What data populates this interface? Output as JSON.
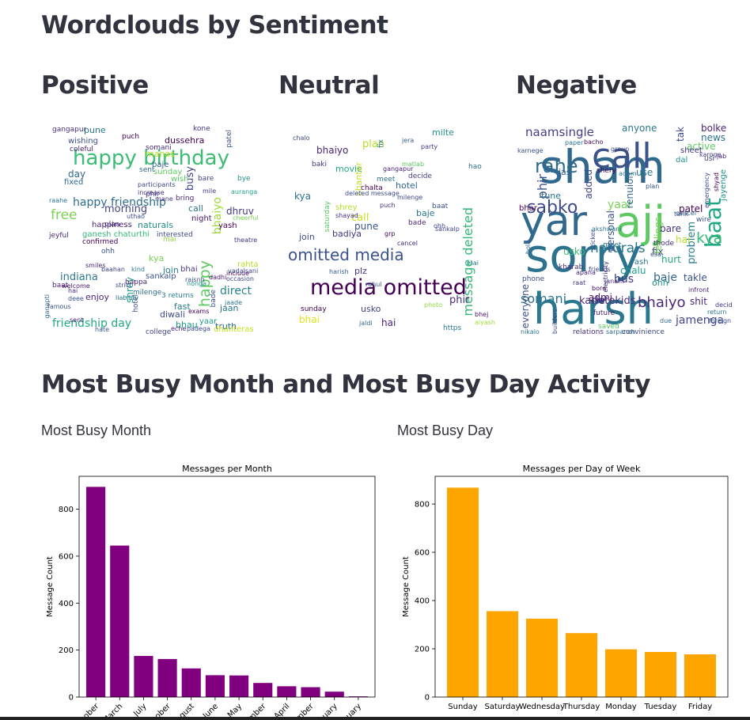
{
  "headings": {
    "wordclouds": "Wordclouds by Sentiment",
    "positive": "Positive",
    "neutral": "Neutral",
    "negative": "Negative",
    "busy": "Most Busy Month and Most Busy Day Activity",
    "busy_month": "Most Busy Month",
    "busy_day": "Most Busy Day"
  },
  "wordclouds": {
    "positive": {
      "words": [
        {
          "t": "happy birthday",
          "c": "#3dbc74"
        },
        {
          "t": "happy friendship",
          "c": "#2f6c8e"
        },
        {
          "t": "friendship day",
          "c": "#22a884"
        },
        {
          "t": "morning",
          "c": "#414487"
        },
        {
          "t": "indiana",
          "c": "#2a788e"
        },
        {
          "t": "free",
          "c": "#7ad151"
        },
        {
          "t": "happy",
          "c": "#5ec962"
        },
        {
          "t": "busy",
          "c": "#414487"
        },
        {
          "t": "manas",
          "c": "#b5de2b"
        },
        {
          "t": "day",
          "c": "#31688e"
        },
        {
          "t": "dussehra",
          "c": "#440154"
        },
        {
          "t": "bhaiyo",
          "c": "#a0da39"
        },
        {
          "t": "direct",
          "c": "#26828e"
        },
        {
          "t": "truth",
          "c": "#31688e"
        },
        {
          "t": "fast",
          "c": "#2a788e"
        },
        {
          "t": "diwali",
          "c": "#3e4989"
        },
        {
          "t": "bhau",
          "c": "#1f9e89"
        },
        {
          "t": "kya",
          "c": "#7ad151"
        },
        {
          "t": "enjoy",
          "c": "#482878"
        },
        {
          "t": "join",
          "c": "#287d8e"
        },
        {
          "t": "sankalp",
          "c": "#3b528b"
        },
        {
          "t": "ganesh chaturthi",
          "c": "#35b779"
        },
        {
          "t": "happiness",
          "c": "#482475"
        },
        {
          "t": "naturals",
          "c": "#21918c"
        },
        {
          "t": "dhruv",
          "c": "#443983"
        },
        {
          "t": "call",
          "c": "#2c728e"
        },
        {
          "t": "yash",
          "c": "#440154"
        },
        {
          "t": "pune",
          "c": "#2a788e"
        },
        {
          "t": "sunday",
          "c": "#5ec962"
        },
        {
          "t": "fixed",
          "c": "#31688e"
        },
        {
          "t": "plan",
          "c": "#472d7b"
        },
        {
          "t": "confirmed",
          "c": "#440154"
        },
        {
          "t": "interested",
          "c": "#3e4a89"
        },
        {
          "t": "shrey",
          "c": "#1f9e89"
        },
        {
          "t": "bappa",
          "c": "#482475"
        },
        {
          "t": "bhai",
          "c": "#433e85"
        },
        {
          "t": "night",
          "c": "#481769"
        },
        {
          "t": "jaan",
          "c": "#2c728e"
        },
        {
          "t": "dhanteras",
          "c": "#c8e020"
        },
        {
          "t": "somani",
          "c": "#482878"
        },
        {
          "t": "college",
          "c": "#404688"
        },
        {
          "t": "bade",
          "c": "#3b528b"
        },
        {
          "t": "yaar",
          "c": "#1e9b8a"
        },
        {
          "t": "wishing",
          "c": "#3b528b"
        },
        {
          "t": "milenge",
          "c": "#2d708e"
        },
        {
          "t": "3 returns",
          "c": "#287d8e"
        },
        {
          "t": "puch",
          "c": "#440154"
        },
        {
          "t": "kone",
          "c": "#46327e"
        },
        {
          "t": "bare",
          "c": "#414487"
        },
        {
          "t": "coleful",
          "c": "#482475"
        },
        {
          "t": "patel",
          "c": "#3b528b"
        },
        {
          "t": "bye",
          "c": "#21918c"
        },
        {
          "t": "gangapur",
          "c": "#46337f"
        },
        {
          "t": "phir",
          "c": "#443983"
        },
        {
          "t": "baje",
          "c": "#355f8d"
        },
        {
          "t": "mai",
          "c": "#90d743"
        },
        {
          "t": "uthao",
          "c": "#3e4989"
        },
        {
          "t": "increase",
          "c": "#46327e"
        },
        {
          "t": "participants",
          "c": "#404688"
        },
        {
          "t": "wish",
          "c": "#5ec962"
        },
        {
          "t": "bring",
          "c": "#472c7a"
        },
        {
          "t": "hotel",
          "c": "#3b528b"
        },
        {
          "t": "sent",
          "c": "#31688e"
        },
        {
          "t": "raahe",
          "c": "#2d708e"
        },
        {
          "t": "baat",
          "c": "#481f70"
        },
        {
          "t": "ohh",
          "c": "#3b528b"
        },
        {
          "t": "smiles",
          "c": "#481f70"
        },
        {
          "t": "strict",
          "c": "#3e4a89"
        },
        {
          "t": "exams",
          "c": "#440154"
        },
        {
          "t": "welcome",
          "c": "#481467"
        },
        {
          "t": "liability",
          "c": "#2a788e"
        },
        {
          "t": "famous",
          "c": "#3b528b"
        },
        {
          "t": "jeyful",
          "c": "#482878"
        },
        {
          "t": "hai",
          "c": "#472a7a"
        },
        {
          "t": "deee",
          "c": "#3b528b"
        },
        {
          "t": "ganapti",
          "c": "#31688e"
        },
        {
          "t": "theatre",
          "c": "#46327e"
        },
        {
          "t": "occasion",
          "c": "#3e4989"
        },
        {
          "t": "include",
          "c": "#440154"
        },
        {
          "t": "rahta",
          "c": "#b5de2b"
        },
        {
          "t": "cheerful",
          "c": "#7ad151"
        },
        {
          "t": "aurangabad",
          "c": "#1f9e89"
        },
        {
          "t": "dadhi",
          "c": "#481467"
        },
        {
          "t": "mile",
          "c": "#443983"
        },
        {
          "t": "vadalsani",
          "c": "#3e4989"
        },
        {
          "t": "jaade",
          "c": "#2c728e"
        },
        {
          "t": "rajsnh",
          "c": "#3b528b"
        },
        {
          "t": "nonga",
          "c": "#21918c"
        },
        {
          "t": "eche",
          "c": "#482475"
        },
        {
          "t": "padega",
          "c": "#3e4a89"
        },
        {
          "t": "sent",
          "c": "#481f70"
        },
        {
          "t": "mane",
          "c": "#46327e"
        },
        {
          "t": "kind",
          "c": "#2a788e"
        },
        {
          "t": "baahan",
          "c": "#414487"
        },
        {
          "t": "hate",
          "c": "#3b528b"
        }
      ]
    },
    "neutral": {
      "words": [
        {
          "t": "media omitted",
          "c": "#440154"
        },
        {
          "t": "omitted media",
          "c": "#3b528b"
        },
        {
          "t": "message deleted",
          "c": "#35b779"
        },
        {
          "t": "bhaiyo",
          "c": "#482475"
        },
        {
          "t": "plan",
          "c": "#b5de2b"
        },
        {
          "t": "milte",
          "c": "#21918c"
        },
        {
          "t": "hotel",
          "c": "#31688e"
        },
        {
          "t": "baje",
          "c": "#2a788e"
        },
        {
          "t": "pune",
          "c": "#3b528b"
        },
        {
          "t": "call",
          "c": "#c8e020"
        },
        {
          "t": "badiya",
          "c": "#46327e"
        },
        {
          "t": "kya",
          "c": "#2c728e"
        },
        {
          "t": "movie",
          "c": "#22a884"
        },
        {
          "t": "join",
          "c": "#3e4989"
        },
        {
          "t": "phir",
          "c": "#472d7b"
        },
        {
          "t": "usko",
          "c": "#414487"
        },
        {
          "t": "hai",
          "c": "#481f70"
        },
        {
          "t": "bhai",
          "c": "#dde318"
        },
        {
          "t": "sunday",
          "c": "#440154"
        },
        {
          "t": "https",
          "c": "#2a788e"
        },
        {
          "t": "chanter",
          "c": "#c8e020"
        },
        {
          "t": "decide",
          "c": "#433e85"
        },
        {
          "t": "baat",
          "c": "#3b528b"
        },
        {
          "t": "bade",
          "c": "#482475"
        },
        {
          "t": "meet",
          "c": "#2d708e"
        },
        {
          "t": "chalta",
          "c": "#440154"
        },
        {
          "t": "deleted message",
          "c": "#3e4989"
        },
        {
          "t": "plz",
          "c": "#46327e"
        },
        {
          "t": "jaldi",
          "c": "#31688e"
        },
        {
          "t": "fix",
          "c": "#287d8e"
        },
        {
          "t": "sankalp",
          "c": "#404688"
        },
        {
          "t": "shrey",
          "c": "#b5de2b"
        },
        {
          "t": "cancel",
          "c": "#472c7a"
        },
        {
          "t": "harish",
          "c": "#355f8d"
        },
        {
          "t": "rahul",
          "c": "#3b528b"
        },
        {
          "t": "bhej",
          "c": "#481467"
        },
        {
          "t": "saturday",
          "c": "#5ec962"
        },
        {
          "t": "baki",
          "c": "#46337f"
        },
        {
          "t": "grp",
          "c": "#440154"
        },
        {
          "t": "party",
          "c": "#443983"
        },
        {
          "t": "jera",
          "c": "#355f8d"
        },
        {
          "t": "hao",
          "c": "#2c728e"
        },
        {
          "t": "photo",
          "c": "#90d743"
        },
        {
          "t": "aiyash",
          "c": "#a0da39"
        },
        {
          "t": "chalo",
          "c": "#3e4989"
        },
        {
          "t": "matlab",
          "c": "#5ec962"
        },
        {
          "t": "gangapur",
          "c": "#481f70"
        },
        {
          "t": "milenge",
          "c": "#404688"
        },
        {
          "t": "puch",
          "c": "#46327e"
        },
        {
          "t": "mai",
          "c": "#2a788e"
        },
        {
          "t": "ohh",
          "c": "#3e4a89"
        },
        {
          "t": "shayad",
          "c": "#472d7b"
        }
      ]
    },
    "negative": {
      "words": [
        {
          "t": "sham",
          "c": "#31688e"
        },
        {
          "t": "sorry",
          "c": "#2c728e"
        },
        {
          "t": "harsh",
          "c": "#2a788e"
        },
        {
          "t": "yar",
          "c": "#31688e"
        },
        {
          "t": "ajj",
          "c": "#5ec962"
        },
        {
          "t": "call",
          "c": "#3b528b"
        },
        {
          "t": "baat",
          "c": "#22a884"
        },
        {
          "t": "sabko",
          "c": "#3e4989"
        },
        {
          "t": "rahe",
          "c": "#2f6c8e"
        },
        {
          "t": "naamsingle",
          "c": "#433e85"
        },
        {
          "t": "naturals",
          "c": "#2a788e"
        },
        {
          "t": "kya",
          "c": "#35b779"
        },
        {
          "t": "bhaiyo",
          "c": "#482878"
        },
        {
          "t": "jamenga",
          "c": "#404688"
        },
        {
          "t": "somani",
          "c": "#2c728e"
        },
        {
          "t": "phir",
          "c": "#3b528b"
        },
        {
          "t": "yaar",
          "c": "#7ad151"
        },
        {
          "t": "bus",
          "c": "#443983"
        },
        {
          "t": "baje",
          "c": "#31688e"
        },
        {
          "t": "karletekids",
          "c": "#472d7b"
        },
        {
          "t": "active",
          "c": "#5ec962"
        },
        {
          "t": "bolke",
          "c": "#481f70"
        },
        {
          "t": "news",
          "c": "#2c728e"
        },
        {
          "t": "tak",
          "c": "#3e4a89"
        },
        {
          "t": "anyone",
          "c": "#2a788e"
        },
        {
          "t": "patel",
          "c": "#440154"
        },
        {
          "t": "problem",
          "c": "#287d8e"
        },
        {
          "t": "takle",
          "c": "#3b528b"
        },
        {
          "t": "shit",
          "c": "#482475"
        },
        {
          "t": "hurt",
          "c": "#22a884"
        },
        {
          "t": "fix",
          "c": "#3e4989"
        },
        {
          "t": "bare",
          "c": "#46327e"
        },
        {
          "t": "chalu",
          "c": "#1f9e89"
        },
        {
          "t": "admi",
          "c": "#481467"
        },
        {
          "t": "grp",
          "c": "#472c7a"
        },
        {
          "t": "hai",
          "c": "#b5de2b"
        },
        {
          "t": "ohh",
          "c": "#21918c"
        },
        {
          "t": "renuion",
          "c": "#31688e"
        },
        {
          "t": "feelings",
          "c": "#7ad151"
        },
        {
          "t": "personal",
          "c": "#3b528b"
        },
        {
          "t": "added",
          "c": "#3e4989"
        },
        {
          "t": "tune",
          "c": "#2c728e"
        },
        {
          "t": "jas",
          "c": "#355f8d"
        },
        {
          "t": "use",
          "c": "#2a788e"
        },
        {
          "t": "everyone",
          "c": "#3b528b"
        },
        {
          "t": "usko",
          "c": "#3dbc74"
        },
        {
          "t": "future",
          "c": "#481f70"
        },
        {
          "t": "nikalo",
          "c": "#2a788e"
        },
        {
          "t": "relations",
          "c": "#46327e"
        },
        {
          "t": "convinience",
          "c": "#3e4989"
        },
        {
          "t": "bhar",
          "c": "#440154"
        },
        {
          "t": "jayenge",
          "c": "#21918c"
        },
        {
          "t": "cancel",
          "c": "#31688e"
        },
        {
          "t": "karoge",
          "c": "#443983"
        },
        {
          "t": "wire",
          "c": "#3b528b"
        },
        {
          "t": "thode",
          "c": "#46337f"
        },
        {
          "t": "phone",
          "c": "#3e4a89"
        },
        {
          "t": "kharab",
          "c": "#472d7b"
        },
        {
          "t": "meet",
          "c": "#2d708e"
        },
        {
          "t": "plan",
          "c": "#3b528b"
        },
        {
          "t": "shery",
          "c": "#440154"
        },
        {
          "t": "adam",
          "c": "#2a788e"
        },
        {
          "t": "sheet",
          "c": "#46327e"
        },
        {
          "t": "dal",
          "c": "#21918c"
        },
        {
          "t": "usi",
          "c": "#414487"
        },
        {
          "t": "jab",
          "c": "#482475"
        },
        {
          "t": "group",
          "c": "#3e4989"
        },
        {
          "t": "yash",
          "c": "#2c728e"
        },
        {
          "t": "tarik",
          "c": "#3b528b"
        },
        {
          "t": "saved",
          "c": "#5ec962"
        },
        {
          "t": "bore",
          "c": "#440154"
        },
        {
          "t": "janam",
          "c": "#46327e"
        },
        {
          "t": "esa",
          "c": "#3b528b"
        },
        {
          "t": "due",
          "c": "#31688e"
        },
        {
          "t": "decide",
          "c": "#46327e"
        },
        {
          "t": "infront",
          "c": "#482475"
        },
        {
          "t": "friends",
          "c": "#3e4989"
        },
        {
          "t": "karnege",
          "c": "#3b528b"
        },
        {
          "t": "paper",
          "c": "#2c728e"
        },
        {
          "t": "bacho",
          "c": "#440154"
        },
        {
          "t": "sarpanch",
          "c": "#31688e"
        },
        {
          "t": "builders",
          "c": "#3e4989"
        },
        {
          "t": "apana",
          "c": "#482475"
        },
        {
          "t": "raat",
          "c": "#46327e"
        },
        {
          "t": "foreign",
          "c": "#3b528b"
        },
        {
          "t": "return",
          "c": "#2a788e"
        },
        {
          "t": "emergency",
          "c": "#3e4989"
        },
        {
          "t": "shyad",
          "c": "#440154"
        },
        {
          "t": "akshwani",
          "c": "#2c728e"
        },
        {
          "t": "sticker",
          "c": "#3b528b"
        },
        {
          "t": "electricity",
          "c": "#46327e"
        },
        {
          "t": "bola",
          "c": "#31688e"
        }
      ]
    }
  },
  "chart_data": [
    {
      "type": "bar",
      "title": "Messages per Month",
      "ylabel": "Message Count",
      "categories": [
        "...ober",
        "March",
        "July",
        "...ober",
        "...gust",
        "June",
        "May",
        "...mber",
        "April",
        "...mber",
        "...uary",
        "...uary"
      ],
      "values": [
        895,
        645,
        175,
        162,
        122,
        93,
        92,
        60,
        46,
        42,
        23,
        3
      ],
      "color": "#800080",
      "ylim": [
        0,
        940
      ],
      "yticks": [
        0,
        200,
        400,
        600,
        800
      ],
      "tick_rotation": 45
    },
    {
      "type": "bar",
      "title": "Messages per Day of Week",
      "ylabel": "Message Count",
      "xlabel": "Day",
      "categories": [
        "Sunday",
        "Saturday",
        "Wednesday",
        "Thursday",
        "Monday",
        "Tuesday",
        "Friday"
      ],
      "values": [
        868,
        356,
        325,
        265,
        198,
        187,
        177
      ],
      "color": "#ffa500",
      "ylim": [
        0,
        915
      ],
      "yticks": [
        0,
        200,
        400,
        600,
        800
      ]
    }
  ]
}
